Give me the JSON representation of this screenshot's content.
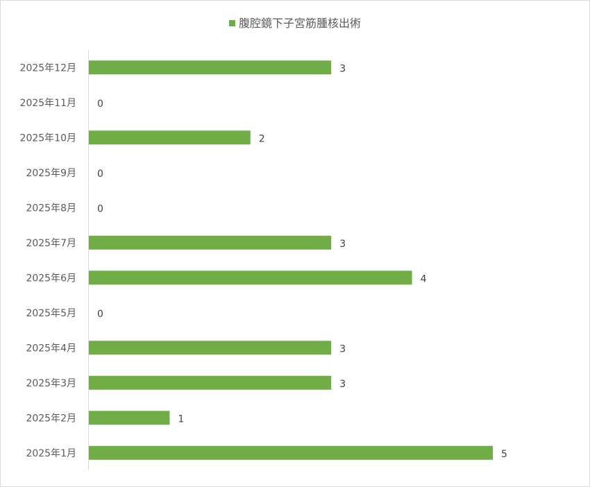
{
  "chart_data": {
    "type": "bar",
    "orientation": "horizontal",
    "categories": [
      "2025年1月",
      "2025年2月",
      "2025年3月",
      "2025年4月",
      "2025年5月",
      "2025年6月",
      "2025年7月",
      "2025年8月",
      "2025年9月",
      "2025年10月",
      "2025年11月",
      "2025年12月"
    ],
    "series": [
      {
        "name": "腹腔鏡下子宮筋腫核出術",
        "values": [
          5,
          1,
          3,
          3,
          0,
          4,
          3,
          0,
          0,
          2,
          0,
          3
        ],
        "color": "#70ad47"
      }
    ],
    "title": "",
    "xlabel": "",
    "ylabel": "",
    "xlim": [
      0,
      5
    ],
    "grid": false,
    "legend": "top",
    "data_labels": true
  }
}
